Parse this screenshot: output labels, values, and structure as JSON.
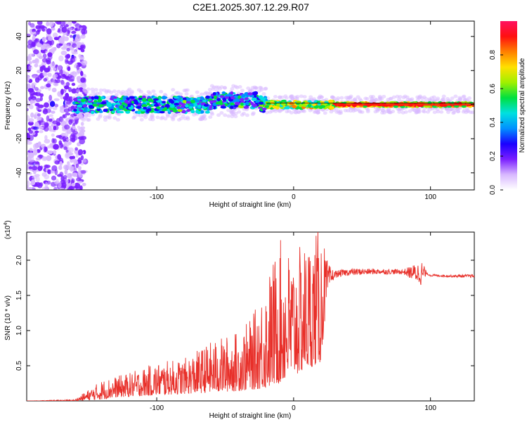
{
  "title": "C2E1.2025.307.12.29.R07",
  "colors": {
    "snr_line": "#e8302a",
    "frame": "#000000",
    "colormap": [
      "#ffffff",
      "#d8b8ff",
      "#7a1fff",
      "#1a00ff",
      "#0090ff",
      "#00e0e0",
      "#00e040",
      "#a0f000",
      "#ffe000",
      "#ff8000",
      "#ff1010",
      "#ff1060"
    ]
  },
  "chart_data": [
    {
      "type": "heatmap",
      "name": "spectrogram",
      "xlabel": "Height of straight line (km)",
      "ylabel": "Frequency (Hz)",
      "xlim": [
        -195,
        132
      ],
      "ylim": [
        -50,
        49
      ],
      "xticks": [
        -100,
        0,
        100
      ],
      "xtick_labels": [
        "-100",
        "0",
        "100"
      ],
      "yticks": [
        -40,
        -20,
        0,
        20,
        40
      ],
      "ytick_labels": [
        "-40",
        "-20",
        "0",
        "20",
        "40"
      ],
      "colorbar": {
        "label": "Normalized spectral amplitude",
        "range": [
          0,
          1
        ],
        "ticks": [
          0,
          0.2,
          0.4,
          0.6,
          0.8
        ],
        "tick_labels": [
          "0.0",
          "0.2",
          "0.4",
          "0.6",
          "0.8"
        ]
      },
      "band": {
        "description": "energy concentrated near 0 Hz, broad scatter for heights below -165 km",
        "noisy_region_x": [
          -195,
          -152
        ],
        "center_line_x": [
          -160,
          132
        ],
        "strong_region_x": [
          30,
          132
        ],
        "strong_amplitude": 0.95,
        "mid_amplitude": 0.45
      }
    },
    {
      "type": "line",
      "name": "snr",
      "xlabel": "Height of straight line (km)",
      "ylabel": "SNR (10 * v/v)",
      "y_multiplier_label": "(x10",
      "y_multiplier_exp": "4",
      "y_multiplier_close": ")",
      "xlim": [
        -195,
        132
      ],
      "ylim": [
        0,
        2.4
      ],
      "xticks": [
        -100,
        0,
        100
      ],
      "xtick_labels": [
        "-100",
        "0",
        "100"
      ],
      "yticks": [
        0.5,
        1.0,
        1.5,
        2.0
      ],
      "ytick_labels": [
        "0.5",
        "1.0",
        "1.5",
        "2.0"
      ],
      "envelope": {
        "x": [
          -195,
          -160,
          -140,
          -130,
          -120,
          -100,
          -80,
          -60,
          -40,
          -30,
          -20,
          -10,
          0,
          10,
          20,
          25,
          30,
          40,
          60,
          80,
          95,
          97,
          100,
          115,
          132
        ],
        "low": [
          0.0,
          0.0,
          0.02,
          0.05,
          0.06,
          0.08,
          0.1,
          0.12,
          0.14,
          0.16,
          0.18,
          0.25,
          0.35,
          0.45,
          0.55,
          1.6,
          1.75,
          1.78,
          1.8,
          1.8,
          1.62,
          1.8,
          1.77,
          1.76,
          1.75
        ],
        "high": [
          0.0,
          0.02,
          0.3,
          0.35,
          0.4,
          0.55,
          0.6,
          0.85,
          1.0,
          1.2,
          1.75,
          2.3,
          2.1,
          2.3,
          2.5,
          1.95,
          1.85,
          1.88,
          1.88,
          1.87,
          2.0,
          1.82,
          1.8,
          1.79,
          1.8
        ]
      }
    }
  ]
}
